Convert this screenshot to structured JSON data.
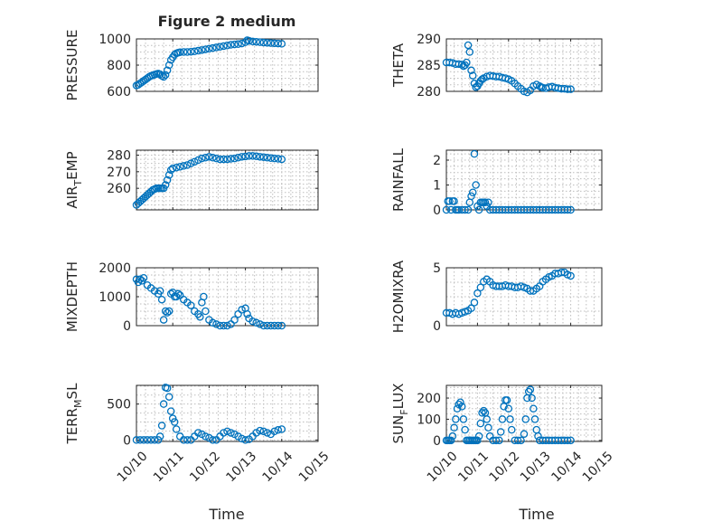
{
  "figure": {
    "title": "Figure 2 medium",
    "xlabel": "Time"
  },
  "chart_data": [
    {
      "type": "scatter",
      "id": "pressure",
      "ylabel": "PRESSURE",
      "ylim": [
        600,
        1000
      ],
      "yticks": [
        600,
        800,
        1000
      ],
      "xlim": [
        0,
        5
      ],
      "xticks": [
        "10/10",
        "10/11",
        "10/12",
        "10/13",
        "10/14",
        "10/15"
      ],
      "x_tick_labels_shown": false,
      "x": [
        0,
        0.05,
        0.1,
        0.15,
        0.2,
        0.25,
        0.3,
        0.35,
        0.4,
        0.45,
        0.5,
        0.55,
        0.6,
        0.65,
        0.7,
        0.75,
        0.8,
        0.85,
        0.9,
        0.95,
        1.0,
        1.05,
        1.1,
        1.15,
        1.2,
        1.3,
        1.4,
        1.5,
        1.6,
        1.7,
        1.8,
        1.9,
        2.0,
        2.1,
        2.2,
        2.3,
        2.4,
        2.5,
        2.6,
        2.7,
        2.8,
        2.9,
        3.0,
        3.05,
        3.1,
        3.2,
        3.3,
        3.4,
        3.5,
        3.6,
        3.7,
        3.8,
        3.9,
        4.0
      ],
      "y": [
        645,
        650,
        660,
        670,
        680,
        690,
        700,
        710,
        718,
        722,
        728,
        732,
        735,
        730,
        718,
        710,
        725,
        760,
        800,
        840,
        860,
        880,
        890,
        895,
        898,
        900,
        900,
        902,
        905,
        910,
        915,
        920,
        925,
        930,
        935,
        940,
        945,
        950,
        955,
        958,
        960,
        965,
        975,
        990,
        985,
        980,
        978,
        975,
        972,
        970,
        968,
        966,
        965,
        963
      ]
    },
    {
      "type": "scatter",
      "id": "theta",
      "ylabel": "THETA",
      "ylim": [
        280,
        290
      ],
      "yticks": [
        280,
        285,
        290
      ],
      "xlim": [
        0,
        5
      ],
      "x_tick_labels_shown": false,
      "x": [
        0,
        0.1,
        0.2,
        0.3,
        0.4,
        0.5,
        0.55,
        0.6,
        0.65,
        0.7,
        0.75,
        0.8,
        0.85,
        0.9,
        0.95,
        1.0,
        1.05,
        1.1,
        1.15,
        1.2,
        1.3,
        1.4,
        1.5,
        1.6,
        1.7,
        1.8,
        1.9,
        2.0,
        2.1,
        2.2,
        2.3,
        2.4,
        2.5,
        2.6,
        2.7,
        2.8,
        2.9,
        3.0,
        3.05,
        3.1,
        3.2,
        3.3,
        3.4,
        3.5,
        3.6,
        3.7,
        3.8,
        3.9,
        4.0
      ],
      "y": [
        285.5,
        285.5,
        285.4,
        285.2,
        285.2,
        285.1,
        284.8,
        285.0,
        285.5,
        288.8,
        287.5,
        284.0,
        283.0,
        281.5,
        280.8,
        281.0,
        281.5,
        282.0,
        282.3,
        282.5,
        282.8,
        283.0,
        282.9,
        282.8,
        282.8,
        282.6,
        282.5,
        282.3,
        282.0,
        281.5,
        281.0,
        280.5,
        280.0,
        279.8,
        280.2,
        281.0,
        281.3,
        281.0,
        280.8,
        280.7,
        280.6,
        280.8,
        280.9,
        280.7,
        280.6,
        280.5,
        280.5,
        280.4,
        280.4
      ]
    },
    {
      "type": "scatter",
      "id": "air_temp",
      "ylabel": "AIR",
      "ylabel_sub": "T",
      "ylabel_rest": "EMP",
      "ylim": [
        247,
        283
      ],
      "yticks": [
        260,
        270,
        280
      ],
      "xlim": [
        0,
        5
      ],
      "x_tick_labels_shown": false,
      "x": [
        0,
        0.05,
        0.1,
        0.15,
        0.2,
        0.25,
        0.3,
        0.35,
        0.4,
        0.45,
        0.5,
        0.55,
        0.6,
        0.65,
        0.7,
        0.75,
        0.8,
        0.85,
        0.9,
        0.95,
        1.0,
        1.1,
        1.2,
        1.3,
        1.4,
        1.5,
        1.6,
        1.7,
        1.8,
        1.9,
        2.0,
        2.1,
        2.2,
        2.3,
        2.4,
        2.5,
        2.6,
        2.7,
        2.8,
        2.9,
        3.0,
        3.1,
        3.2,
        3.3,
        3.4,
        3.5,
        3.6,
        3.7,
        3.8,
        3.9,
        4.0
      ],
      "y": [
        250,
        251,
        252,
        253,
        254,
        255,
        256,
        257,
        258,
        259,
        259.5,
        260,
        260,
        260,
        260,
        260,
        262,
        265,
        268,
        271,
        272,
        272.5,
        273,
        273.5,
        274,
        275,
        276,
        277,
        278,
        278.5,
        279,
        278.5,
        278,
        277.5,
        277.5,
        277.5,
        277.8,
        278,
        278.5,
        279,
        279.2,
        279.5,
        279.5,
        279.3,
        279,
        278.8,
        278.5,
        278.2,
        278,
        277.8,
        277.5
      ]
    },
    {
      "type": "scatter",
      "id": "rainfall",
      "ylabel": "RAINFALL",
      "ylim": [
        0,
        2.4
      ],
      "yticks": [
        0,
        1,
        2
      ],
      "xlim": [
        0,
        5
      ],
      "x_tick_labels_shown": false,
      "x": [
        0,
        0.05,
        0.1,
        0.15,
        0.2,
        0.25,
        0.3,
        0.35,
        0.4,
        0.5,
        0.6,
        0.7,
        0.75,
        0.8,
        0.85,
        0.9,
        0.95,
        1.0,
        1.05,
        1.1,
        1.15,
        1.2,
        1.25,
        1.3,
        1.35,
        1.4,
        1.5,
        1.6,
        1.7,
        1.8,
        1.9,
        2.0,
        2.1,
        2.2,
        2.3,
        2.4,
        2.5,
        2.6,
        2.7,
        2.8,
        2.9,
        3.0,
        3.1,
        3.2,
        3.3,
        3.4,
        3.5,
        3.6,
        3.7,
        3.8,
        3.9,
        4.0
      ],
      "y": [
        0,
        0.35,
        0.35,
        0,
        0.35,
        0.35,
        0,
        0,
        0,
        0,
        0,
        0,
        0.3,
        0.55,
        0.7,
        2.25,
        1.0,
        0.15,
        0,
        0.3,
        0.3,
        0.3,
        0.3,
        0.15,
        0.3,
        0,
        0,
        0,
        0,
        0,
        0,
        0,
        0,
        0,
        0,
        0,
        0,
        0,
        0,
        0,
        0,
        0,
        0,
        0,
        0,
        0,
        0,
        0,
        0,
        0,
        0,
        0
      ]
    },
    {
      "type": "scatter",
      "id": "mixdepth",
      "ylabel": "MIXDEPTH",
      "ylim": [
        0,
        2000
      ],
      "yticks": [
        0,
        1000,
        2000
      ],
      "xlim": [
        0,
        5
      ],
      "x_tick_labels_shown": false,
      "x": [
        0,
        0.05,
        0.1,
        0.15,
        0.2,
        0.3,
        0.4,
        0.5,
        0.6,
        0.65,
        0.7,
        0.75,
        0.8,
        0.85,
        0.9,
        0.95,
        1.0,
        1.05,
        1.1,
        1.15,
        1.2,
        1.3,
        1.4,
        1.5,
        1.6,
        1.7,
        1.75,
        1.8,
        1.85,
        1.9,
        2.0,
        2.1,
        2.2,
        2.3,
        2.4,
        2.5,
        2.6,
        2.7,
        2.8,
        2.9,
        3.0,
        3.05,
        3.1,
        3.2,
        3.3,
        3.4,
        3.5,
        3.6,
        3.7,
        3.8,
        3.9,
        4.0
      ],
      "y": [
        1600,
        1500,
        1600,
        1550,
        1650,
        1400,
        1300,
        1200,
        1100,
        1200,
        900,
        200,
        500,
        450,
        500,
        1100,
        1150,
        1000,
        1000,
        1100,
        1050,
        900,
        800,
        700,
        500,
        400,
        300,
        800,
        1000,
        500,
        200,
        100,
        50,
        0,
        0,
        0,
        50,
        200,
        400,
        550,
        600,
        400,
        250,
        150,
        100,
        50,
        0,
        0,
        0,
        0,
        0,
        0
      ]
    },
    {
      "type": "scatter",
      "id": "h2omixra",
      "ylabel": "H2OMIXRA",
      "ylim": [
        0,
        5
      ],
      "yticks": [
        0,
        5
      ],
      "xlim": [
        0,
        5
      ],
      "x_tick_labels_shown": false,
      "x": [
        0,
        0.1,
        0.2,
        0.3,
        0.4,
        0.5,
        0.6,
        0.7,
        0.8,
        0.9,
        1.0,
        1.1,
        1.2,
        1.3,
        1.4,
        1.5,
        1.6,
        1.7,
        1.8,
        1.9,
        2.0,
        2.1,
        2.2,
        2.3,
        2.4,
        2.5,
        2.6,
        2.7,
        2.8,
        2.9,
        3.0,
        3.1,
        3.2,
        3.3,
        3.4,
        3.5,
        3.6,
        3.7,
        3.8,
        3.9,
        4.0
      ],
      "y": [
        1.1,
        1.1,
        1.0,
        1.1,
        1.0,
        1.1,
        1.2,
        1.3,
        1.5,
        2.0,
        2.8,
        3.3,
        3.8,
        4.0,
        3.8,
        3.5,
        3.4,
        3.4,
        3.4,
        3.5,
        3.4,
        3.4,
        3.3,
        3.3,
        3.4,
        3.3,
        3.2,
        3.0,
        3.0,
        3.2,
        3.4,
        3.8,
        4.0,
        4.2,
        4.3,
        4.5,
        4.5,
        4.6,
        4.6,
        4.4,
        4.3
      ]
    },
    {
      "type": "scatter",
      "id": "terr_msl",
      "ylabel": "TERR",
      "ylabel_sub": "M",
      "ylabel_rest": "SL",
      "ylim": [
        -20,
        760
      ],
      "yticks": [
        0,
        500
      ],
      "xlim": [
        0,
        5
      ],
      "xticks": [
        "10/10",
        "10/11",
        "10/12",
        "10/13",
        "10/14",
        "10/15"
      ],
      "x_tick_labels_shown": true,
      "x": [
        0,
        0.1,
        0.2,
        0.3,
        0.4,
        0.5,
        0.6,
        0.65,
        0.7,
        0.75,
        0.8,
        0.85,
        0.9,
        0.95,
        1.0,
        1.05,
        1.1,
        1.2,
        1.3,
        1.4,
        1.5,
        1.6,
        1.7,
        1.8,
        1.9,
        2.0,
        2.1,
        2.2,
        2.3,
        2.4,
        2.5,
        2.6,
        2.7,
        2.8,
        2.9,
        3.0,
        3.1,
        3.2,
        3.3,
        3.4,
        3.5,
        3.6,
        3.7,
        3.8,
        3.9,
        4.0
      ],
      "y": [
        0,
        0,
        0,
        0,
        0,
        0,
        0,
        50,
        200,
        500,
        730,
        720,
        600,
        400,
        300,
        250,
        150,
        50,
        0,
        0,
        0,
        50,
        100,
        80,
        50,
        30,
        0,
        0,
        50,
        100,
        120,
        100,
        80,
        50,
        20,
        0,
        10,
        50,
        100,
        130,
        120,
        100,
        80,
        120,
        140,
        150
      ]
    },
    {
      "type": "scatter",
      "id": "sun_flux",
      "ylabel": "SUN",
      "ylabel_sub": "F",
      "ylabel_rest": "LUX",
      "ylim": [
        -5,
        260
      ],
      "yticks": [
        0,
        100,
        200
      ],
      "xlim": [
        0,
        5
      ],
      "xticks": [
        "10/10",
        "10/11",
        "10/12",
        "10/13",
        "10/14",
        "10/15"
      ],
      "x_tick_labels_shown": true,
      "x": [
        0,
        0.05,
        0.1,
        0.15,
        0.2,
        0.25,
        0.3,
        0.35,
        0.4,
        0.45,
        0.5,
        0.55,
        0.6,
        0.65,
        0.7,
        0.75,
        0.8,
        0.85,
        0.9,
        0.95,
        1.0,
        1.05,
        1.1,
        1.15,
        1.2,
        1.25,
        1.3,
        1.35,
        1.4,
        1.5,
        1.6,
        1.7,
        1.75,
        1.8,
        1.85,
        1.9,
        1.95,
        2.0,
        2.05,
        2.1,
        2.2,
        2.3,
        2.4,
        2.5,
        2.55,
        2.6,
        2.65,
        2.7,
        2.75,
        2.8,
        2.85,
        2.9,
        2.95,
        3.0,
        3.1,
        3.2,
        3.3,
        3.4,
        3.5,
        3.6,
        3.7,
        3.8,
        3.9,
        4.0
      ],
      "y": [
        0,
        0,
        0,
        0,
        20,
        60,
        100,
        150,
        170,
        180,
        160,
        100,
        50,
        0,
        0,
        0,
        0,
        0,
        0,
        0,
        0,
        20,
        80,
        130,
        140,
        130,
        100,
        60,
        20,
        0,
        0,
        0,
        40,
        100,
        160,
        190,
        190,
        150,
        100,
        50,
        0,
        0,
        0,
        30,
        100,
        200,
        230,
        240,
        200,
        150,
        100,
        50,
        20,
        0,
        0,
        0,
        0,
        0,
        0,
        0,
        0,
        0,
        0,
        0
      ]
    }
  ]
}
